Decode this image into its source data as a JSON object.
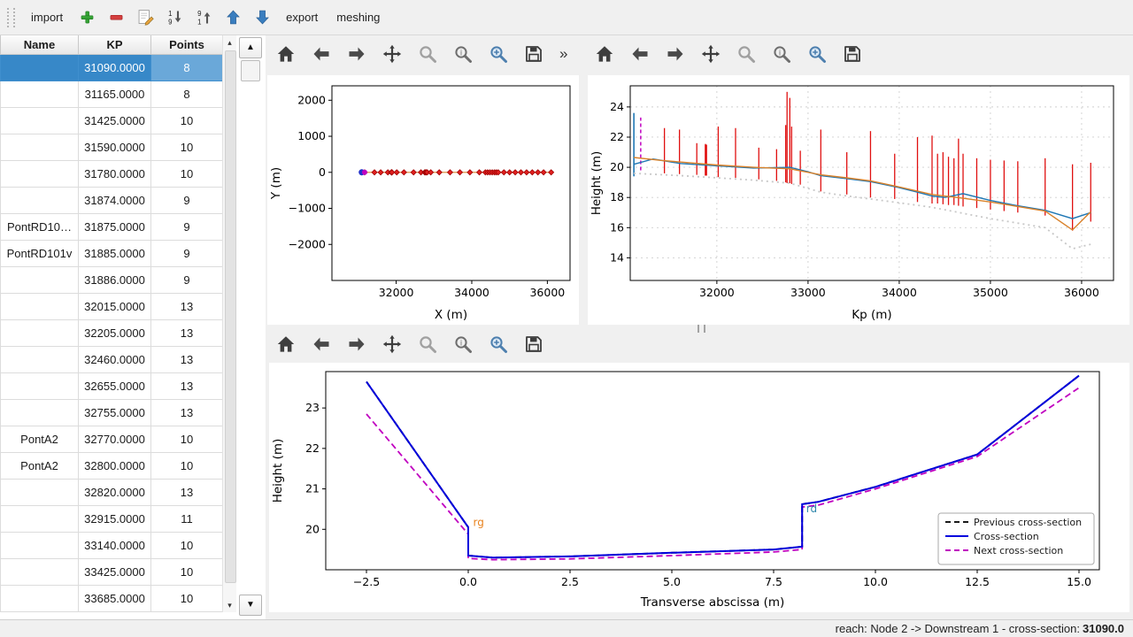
{
  "menubar": {
    "import": "import",
    "export": "export",
    "meshing": "meshing"
  },
  "scrollbars": {
    "up_glyph": "▲",
    "down_glyph": "▼",
    "small_up": "▴",
    "small_down": "▾"
  },
  "plot_toolbar": {
    "icons": [
      "home",
      "back",
      "forward",
      "pan",
      "zoom",
      "zoom-info",
      "zoom-region",
      "save"
    ],
    "overflow": "»"
  },
  "status": {
    "prefix": "reach: Node 2 -> Downstream 1 - cross-section: ",
    "value": "31090.0"
  },
  "colors": {
    "selection": "#3788c8",
    "selection_light": "#6aa8d9"
  },
  "table": {
    "columns": [
      "Name",
      "KP",
      "Points"
    ],
    "selected_index": 0,
    "rows": [
      {
        "name": "",
        "kp": "31090.0000",
        "points": "8"
      },
      {
        "name": "",
        "kp": "31165.0000",
        "points": "8"
      },
      {
        "name": "",
        "kp": "31425.0000",
        "points": "10"
      },
      {
        "name": "",
        "kp": "31590.0000",
        "points": "10"
      },
      {
        "name": "",
        "kp": "31780.0000",
        "points": "10"
      },
      {
        "name": "",
        "kp": "31874.0000",
        "points": "9"
      },
      {
        "name": "PontRD10…",
        "kp": "31875.0000",
        "points": "9"
      },
      {
        "name": "PontRD101v",
        "kp": "31885.0000",
        "points": "9"
      },
      {
        "name": "",
        "kp": "31886.0000",
        "points": "9"
      },
      {
        "name": "",
        "kp": "32015.0000",
        "points": "13"
      },
      {
        "name": "",
        "kp": "32205.0000",
        "points": "13"
      },
      {
        "name": "",
        "kp": "32460.0000",
        "points": "13"
      },
      {
        "name": "",
        "kp": "32655.0000",
        "points": "13"
      },
      {
        "name": "",
        "kp": "32755.0000",
        "points": "13"
      },
      {
        "name": "PontA2",
        "kp": "32770.0000",
        "points": "10"
      },
      {
        "name": "PontA2",
        "kp": "32800.0000",
        "points": "10"
      },
      {
        "name": "",
        "kp": "32820.0000",
        "points": "13"
      },
      {
        "name": "",
        "kp": "32915.0000",
        "points": "11"
      },
      {
        "name": "",
        "kp": "33140.0000",
        "points": "10"
      },
      {
        "name": "",
        "kp": "33425.0000",
        "points": "10"
      },
      {
        "name": "",
        "kp": "33685.0000",
        "points": "10"
      }
    ]
  },
  "chart_data": [
    {
      "id": "plan",
      "type": "scatter",
      "title": "",
      "xlabel": "X (m)",
      "ylabel": "Y (m)",
      "xlim": [
        30300,
        36600
      ],
      "ylim": [
        -3000,
        2400
      ],
      "xticks": [
        32000,
        34000,
        36000
      ],
      "yticks": [
        2000,
        1000,
        0,
        -1000,
        -2000
      ],
      "yticklabels": [
        "2000",
        "1000",
        "0",
        "−1000",
        "−2000"
      ],
      "grid": false,
      "series": [
        {
          "name": "river-axis",
          "type": "line",
          "color": "#d9822b",
          "width": 1.2,
          "points": [
            [
              31090,
              0
            ],
            [
              36100,
              0
            ]
          ]
        },
        {
          "name": "cross-section-positions",
          "type": "markers",
          "shape": "diamond",
          "color": "#e02020",
          "edge": "#a00000",
          "x": [
            31090,
            31165,
            31425,
            31590,
            31780,
            31874,
            31875,
            31885,
            31886,
            32015,
            32205,
            32460,
            32655,
            32755,
            32770,
            32800,
            32820,
            32915,
            33140,
            33425,
            33685,
            33950,
            34200,
            34360,
            34420,
            34480,
            34540,
            34600,
            34650,
            34700,
            34850,
            35000,
            35150,
            35300,
            35450,
            35600,
            35750,
            35900,
            36100
          ],
          "y": 0
        },
        {
          "name": "selected-section-position",
          "type": "markers",
          "shape": "circle",
          "color": "#2233cc",
          "size": 3.5,
          "x": [
            31090
          ],
          "y": 0
        },
        {
          "name": "next-section-position",
          "type": "markers",
          "shape": "circle",
          "color": "#c000c0",
          "size": 3,
          "x": [
            31165
          ],
          "y": 0
        }
      ]
    },
    {
      "id": "profile",
      "type": "line",
      "title": "",
      "xlabel": "Kp (m)",
      "ylabel": "Height (m)",
      "xlim": [
        31050,
        36350
      ],
      "ylim": [
        12.5,
        25.4
      ],
      "xticks": [
        32000,
        33000,
        34000,
        35000,
        36000
      ],
      "yticks": [
        14,
        16,
        18,
        20,
        22,
        24
      ],
      "grid": true,
      "series": [
        {
          "name": "cross-section-extents",
          "type": "vlines",
          "color": "#e01010",
          "width": 1.3,
          "lines": [
            [
              31425,
              19.6,
              22.6
            ],
            [
              31590,
              19.55,
              22.5
            ],
            [
              31780,
              19.5,
              21.6
            ],
            [
              31874,
              19.45,
              21.5
            ],
            [
              31875,
              19.45,
              21.55
            ],
            [
              31885,
              19.45,
              21.5
            ],
            [
              31886,
              19.45,
              21.5
            ],
            [
              32015,
              19.35,
              22.7
            ],
            [
              32205,
              19.3,
              22.6
            ],
            [
              32460,
              19.2,
              21.3
            ],
            [
              32655,
              19.1,
              21.2
            ],
            [
              32755,
              19.0,
              22.8
            ],
            [
              32770,
              18.95,
              25.0
            ],
            [
              32800,
              18.95,
              24.6
            ],
            [
              32820,
              18.9,
              22.7
            ],
            [
              32915,
              18.85,
              21.1
            ],
            [
              33140,
              18.4,
              22.5
            ],
            [
              33425,
              18.2,
              21.0
            ],
            [
              33685,
              18.0,
              22.4
            ],
            [
              33950,
              17.9,
              20.9
            ],
            [
              34200,
              17.7,
              22.0
            ],
            [
              34360,
              17.6,
              22.1
            ],
            [
              34420,
              17.6,
              20.9
            ],
            [
              34480,
              17.55,
              21.0
            ],
            [
              34540,
              17.5,
              20.7
            ],
            [
              34600,
              17.5,
              20.6
            ],
            [
              34650,
              17.45,
              21.9
            ],
            [
              34700,
              17.4,
              20.9
            ],
            [
              34850,
              17.3,
              20.6
            ],
            [
              35000,
              17.2,
              20.5
            ],
            [
              35150,
              17.1,
              20.45
            ],
            [
              35300,
              17.0,
              20.4
            ],
            [
              35600,
              16.8,
              20.6
            ],
            [
              35900,
              15.8,
              20.2
            ],
            [
              36100,
              16.4,
              20.3
            ]
          ]
        },
        {
          "name": "current-section-marker",
          "type": "vlines",
          "color": "#1f77b4",
          "width": 1.6,
          "lines": [
            [
              31090,
              19.4,
              23.6
            ]
          ]
        },
        {
          "name": "next-section-marker",
          "type": "vlines",
          "color": "#c000c0",
          "width": 1.5,
          "dash": "4 3",
          "lines": [
            [
              31165,
              19.8,
              23.3
            ]
          ]
        },
        {
          "name": "bed-profile",
          "type": "line",
          "color": "#c8c8c8",
          "width": 1.8,
          "dash": "2 4",
          "points": [
            [
              31090,
              19.6
            ],
            [
              31600,
              19.45
            ],
            [
              32000,
              19.3
            ],
            [
              32400,
              19.15
            ],
            [
              32800,
              18.95
            ],
            [
              33140,
              18.35
            ],
            [
              33425,
              18.1
            ],
            [
              33685,
              17.9
            ],
            [
              34000,
              17.65
            ],
            [
              34360,
              17.35
            ],
            [
              34700,
              16.95
            ],
            [
              35000,
              16.6
            ],
            [
              35300,
              16.3
            ],
            [
              35600,
              16.0
            ],
            [
              35900,
              14.6
            ],
            [
              36100,
              14.9
            ]
          ]
        },
        {
          "name": "waterline-upper",
          "type": "line",
          "color": "#1f77b4",
          "width": 1.4,
          "points": [
            [
              31090,
              20.2
            ],
            [
              31300,
              20.55
            ],
            [
              31600,
              20.25
            ],
            [
              32000,
              20.1
            ],
            [
              32400,
              19.95
            ],
            [
              32800,
              20.0
            ],
            [
              33000,
              19.7
            ],
            [
              33140,
              19.45
            ],
            [
              33425,
              19.25
            ],
            [
              33685,
              19.05
            ],
            [
              34000,
              18.65
            ],
            [
              34200,
              18.35
            ],
            [
              34360,
              18.1
            ],
            [
              34500,
              18.0
            ],
            [
              34700,
              18.25
            ],
            [
              35000,
              17.8
            ],
            [
              35300,
              17.45
            ],
            [
              35600,
              17.15
            ],
            [
              35900,
              16.6
            ],
            [
              36100,
              17.0
            ]
          ]
        },
        {
          "name": "waterline-lower",
          "type": "line",
          "color": "#d9822b",
          "width": 1.4,
          "points": [
            [
              31090,
              20.65
            ],
            [
              31400,
              20.45
            ],
            [
              32000,
              20.15
            ],
            [
              32400,
              20.0
            ],
            [
              32800,
              19.9
            ],
            [
              33140,
              19.5
            ],
            [
              33425,
              19.3
            ],
            [
              33685,
              19.1
            ],
            [
              34000,
              18.7
            ],
            [
              34360,
              18.2
            ],
            [
              34700,
              17.95
            ],
            [
              35000,
              17.7
            ],
            [
              35300,
              17.4
            ],
            [
              35600,
              17.1
            ],
            [
              35900,
              15.85
            ],
            [
              36100,
              17.05
            ]
          ]
        }
      ]
    },
    {
      "id": "section",
      "type": "line",
      "title": "",
      "xlabel": "Transverse abscissa (m)",
      "ylabel": "Height (m)",
      "xlim": [
        -3.5,
        15.5
      ],
      "ylim": [
        19.0,
        23.9
      ],
      "xticks": [
        -2.5,
        0,
        2.5,
        5,
        7.5,
        10,
        12.5,
        15
      ],
      "xticklabels": [
        "−2.5",
        "0.0",
        "2.5",
        "5.0",
        "7.5",
        "10.0",
        "12.5",
        "15.0"
      ],
      "yticks": [
        20,
        21,
        22,
        23
      ],
      "grid": false,
      "series": [
        {
          "name": "previous-cross-section",
          "type": "line",
          "color": "#1a1a1a",
          "width": 2,
          "dash": "7 4",
          "points": [
            [
              -2.5,
              23.65
            ],
            [
              0,
              20.05
            ],
            [
              0,
              19.35
            ],
            [
              0.6,
              19.3
            ],
            [
              2.5,
              19.33
            ],
            [
              5,
              19.42
            ],
            [
              7.5,
              19.5
            ],
            [
              8.2,
              19.57
            ],
            [
              8.2,
              20.62
            ],
            [
              8.6,
              20.68
            ],
            [
              10,
              21.05
            ],
            [
              12.5,
              21.85
            ],
            [
              15,
              23.8
            ]
          ]
        },
        {
          "name": "next-cross-section",
          "type": "line",
          "color": "#c000c0",
          "width": 1.8,
          "dash": "7 4",
          "points": [
            [
              -2.5,
              22.85
            ],
            [
              0,
              19.88
            ],
            [
              0,
              19.28
            ],
            [
              0.6,
              19.25
            ],
            [
              2.5,
              19.27
            ],
            [
              5,
              19.35
            ],
            [
              7.5,
              19.44
            ],
            [
              8.2,
              19.5
            ],
            [
              8.2,
              20.55
            ],
            [
              8.6,
              20.6
            ],
            [
              10,
              21.0
            ],
            [
              12.5,
              21.8
            ],
            [
              15,
              23.5
            ]
          ]
        },
        {
          "name": "cross-section",
          "type": "line",
          "color": "#0000dd",
          "width": 2,
          "points": [
            [
              -2.5,
              23.65
            ],
            [
              0,
              20.05
            ],
            [
              0,
              19.35
            ],
            [
              0.6,
              19.3
            ],
            [
              2.5,
              19.33
            ],
            [
              5,
              19.42
            ],
            [
              7.5,
              19.5
            ],
            [
              8.2,
              19.57
            ],
            [
              8.2,
              20.62
            ],
            [
              8.6,
              20.68
            ],
            [
              10,
              21.05
            ],
            [
              12.5,
              21.85
            ],
            [
              15,
              23.8
            ]
          ]
        },
        {
          "name": "left-bank-label",
          "type": "label",
          "text": "rg",
          "color": "#e8821e",
          "x": 0.12,
          "y": 20.08
        },
        {
          "name": "right-bank-label",
          "type": "label",
          "text": "rd",
          "color": "#2e86ab",
          "x": 8.3,
          "y": 20.42
        }
      ],
      "legend": {
        "position": "lower right",
        "entries": [
          {
            "label": "Previous cross-section",
            "color": "#1a1a1a",
            "dash": "6 4"
          },
          {
            "label": "Cross-section",
            "color": "#0000dd"
          },
          {
            "label": "Next cross-section",
            "color": "#c000c0",
            "dash": "6 4"
          }
        ]
      }
    }
  ]
}
